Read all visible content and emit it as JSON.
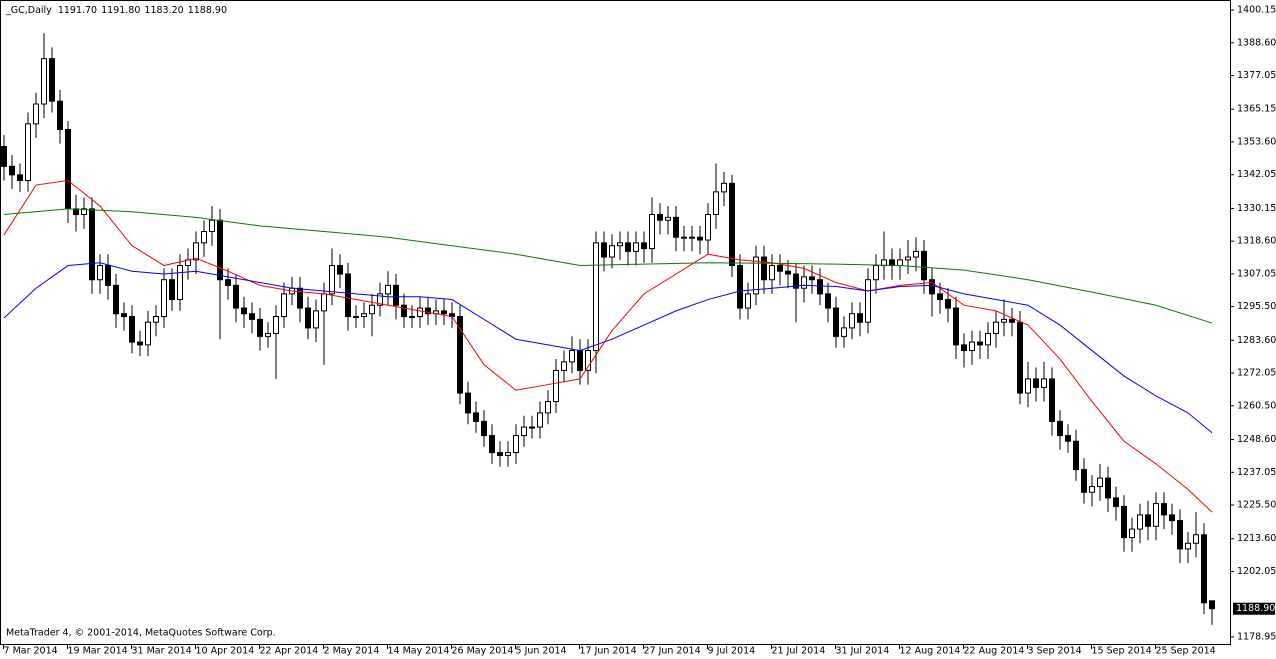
{
  "chart_data": {
    "type": "candlestick",
    "header_symbol": "_GC,Daily",
    "header_ohlc": [
      "1191.70",
      "1191.80",
      "1183.20",
      "1188.90"
    ],
    "footer": "MetaTrader 4, © 2001-2014, MetaQuotes Software Corp.",
    "last_price_label": "1188.90",
    "up_color": "#ffffff",
    "down_color": "#000000",
    "categories": [
      "7 Mar 2014",
      null,
      null,
      null,
      null,
      null,
      null,
      null,
      "19 Mar 2014",
      null,
      null,
      null,
      null,
      null,
      null,
      null,
      "31 Mar 2014",
      null,
      null,
      null,
      null,
      null,
      null,
      null,
      "10 Apr 2014",
      null,
      null,
      null,
      null,
      null,
      null,
      null,
      "22 Apr 2014",
      null,
      null,
      null,
      null,
      null,
      null,
      null,
      "2 May 2014",
      null,
      null,
      null,
      null,
      null,
      null,
      null,
      "14 May 2014",
      null,
      null,
      null,
      null,
      null,
      null,
      null,
      "26 May 2014",
      null,
      null,
      null,
      null,
      null,
      null,
      null,
      "5 Jun 2014",
      null,
      null,
      null,
      null,
      null,
      null,
      null,
      "17 Jun 2014",
      null,
      null,
      null,
      null,
      null,
      null,
      null,
      "27 Jun 2014",
      null,
      null,
      null,
      null,
      null,
      null,
      null,
      "9 Jul 2014",
      null,
      null,
      null,
      null,
      null,
      null,
      null,
      "21 Jul 2014",
      null,
      null,
      null,
      null,
      null,
      null,
      null,
      "31 Jul 2014",
      null,
      null,
      null,
      null,
      null,
      null,
      null,
      "12 Aug 2014",
      null,
      null,
      null,
      null,
      null,
      null,
      null,
      "22 Aug 2014",
      null,
      null,
      null,
      null,
      null,
      null,
      null,
      "3 Sep 2014",
      null,
      null,
      null,
      null,
      null,
      null,
      null,
      "15 Sep 2014",
      null,
      null,
      null,
      null,
      null,
      null,
      null,
      "25 Sep 2014",
      null,
      null,
      null,
      null,
      null,
      null,
      null
    ],
    "open": [
      1352,
      1345,
      1342,
      1340,
      1360,
      1367,
      1383,
      1368,
      1358,
      1330,
      1328,
      1330,
      1305,
      1310,
      1303,
      1293,
      1292,
      1283,
      1282,
      1290,
      1292,
      1305,
      1298,
      1310,
      1312,
      1318,
      1322,
      1326,
      1305,
      1303,
      1295,
      1293,
      1291,
      1285,
      1286,
      1292,
      1300,
      1302,
      1295,
      1288,
      1294,
      1300,
      1310,
      1307,
      1292,
      1292,
      1293,
      1296,
      1300,
      1303,
      1296,
      1292,
      1292,
      1295,
      1293,
      1294,
      1293,
      1292,
      1265,
      1258,
      1255,
      1250,
      1244,
      1243,
      1244,
      1250,
      1253,
      1253,
      1258,
      1262,
      1273,
      1276,
      1280,
      1273,
      1280,
      1318,
      1313,
      1317,
      1318,
      1315,
      1318,
      1316,
      1328,
      1326,
      1327,
      1320,
      1320,
      1320,
      1319,
      1328,
      1336,
      1339,
      1310,
      1295,
      1300,
      1313,
      1305,
      1310,
      1308,
      1307,
      1302,
      1306,
      1305,
      1300,
      1295,
      1285,
      1288,
      1293,
      1290,
      1305,
      1310,
      1312,
      1310,
      1312,
      1313,
      1315,
      1305,
      1300,
      1298,
      1295,
      1282,
      1280,
      1283,
      1282,
      1286,
      1290,
      1291,
      1290,
      1265,
      1270,
      1267,
      1270,
      1255,
      1250,
      1248,
      1238,
      1230,
      1232,
      1235,
      1228,
      1225,
      1214,
      1217,
      1222,
      1218,
      1226,
      1222,
      1220,
      1210,
      1212,
      1215,
      1191.7
    ],
    "high": [
      1356,
      1349,
      1346,
      1364,
      1371,
      1392,
      1387,
      1372,
      1361,
      1335,
      1334,
      1334,
      1314,
      1314,
      1307,
      1297,
      1296,
      1287,
      1294,
      1296,
      1309,
      1309,
      1314,
      1316,
      1322,
      1326,
      1331,
      1330,
      1309,
      1307,
      1299,
      1297,
      1295,
      1290,
      1296,
      1304,
      1306,
      1306,
      1299,
      1298,
      1304,
      1316,
      1314,
      1311,
      1296,
      1297,
      1300,
      1304,
      1308,
      1307,
      1300,
      1296,
      1299,
      1299,
      1298,
      1298,
      1297,
      1296,
      1269,
      1262,
      1259,
      1254,
      1248,
      1248,
      1254,
      1257,
      1257,
      1262,
      1266,
      1277,
      1280,
      1285,
      1284,
      1284,
      1322,
      1322,
      1321,
      1322,
      1322,
      1322,
      1322,
      1334,
      1332,
      1331,
      1331,
      1324,
      1324,
      1324,
      1332,
      1346,
      1343,
      1342,
      1314,
      1304,
      1317,
      1317,
      1314,
      1314,
      1312,
      1311,
      1310,
      1310,
      1309,
      1304,
      1299,
      1292,
      1297,
      1297,
      1309,
      1314,
      1322,
      1316,
      1316,
      1319,
      1320,
      1319,
      1309,
      1304,
      1302,
      1299,
      1286,
      1287,
      1287,
      1290,
      1294,
      1298,
      1295,
      1294,
      1276,
      1274,
      1276,
      1274,
      1259,
      1254,
      1252,
      1242,
      1236,
      1240,
      1239,
      1232,
      1229,
      1221,
      1226,
      1227,
      1230,
      1230,
      1226,
      1224,
      1216,
      1223,
      1219,
      1191.8
    ],
    "low": [
      1340,
      1337,
      1336,
      1336,
      1355,
      1362,
      1364,
      1353,
      1325,
      1322,
      1323,
      1300,
      1300,
      1298,
      1288,
      1287,
      1279,
      1278,
      1278,
      1285,
      1288,
      1294,
      1294,
      1305,
      1307,
      1313,
      1317,
      1284,
      1298,
      1290,
      1288,
      1286,
      1280,
      1281,
      1270,
      1288,
      1296,
      1290,
      1284,
      1283,
      1275,
      1296,
      1302,
      1287,
      1288,
      1288,
      1285,
      1292,
      1296,
      1291,
      1288,
      1288,
      1288,
      1289,
      1289,
      1289,
      1288,
      1261,
      1254,
      1251,
      1246,
      1240,
      1239,
      1239,
      1240,
      1246,
      1249,
      1249,
      1254,
      1258,
      1269,
      1272,
      1268,
      1268,
      1272,
      1308,
      1309,
      1312,
      1310,
      1310,
      1311,
      1311,
      1321,
      1321,
      1315,
      1315,
      1315,
      1314,
      1314,
      1323,
      1331,
      1306,
      1291,
      1291,
      1296,
      1300,
      1300,
      1303,
      1302,
      1290,
      1297,
      1300,
      1296,
      1290,
      1281,
      1281,
      1284,
      1285,
      1286,
      1300,
      1305,
      1305,
      1305,
      1307,
      1308,
      1300,
      1292,
      1293,
      1290,
      1277,
      1274,
      1275,
      1277,
      1277,
      1281,
      1285,
      1285,
      1261,
      1260,
      1262,
      1262,
      1250,
      1245,
      1244,
      1234,
      1226,
      1225,
      1227,
      1223,
      1220,
      1209,
      1209,
      1212,
      1213,
      1213,
      1217,
      1215,
      1205,
      1205,
      1207,
      1187,
      1183.2
    ],
    "close": [
      1345,
      1342,
      1340,
      1360,
      1367,
      1383,
      1368,
      1358,
      1330,
      1328,
      1330,
      1305,
      1310,
      1303,
      1293,
      1292,
      1283,
      1282,
      1290,
      1292,
      1305,
      1298,
      1310,
      1312,
      1318,
      1322,
      1326,
      1305,
      1303,
      1295,
      1293,
      1291,
      1285,
      1286,
      1292,
      1300,
      1302,
      1295,
      1288,
      1294,
      1300,
      1310,
      1307,
      1292,
      1292,
      1293,
      1296,
      1300,
      1303,
      1296,
      1292,
      1292,
      1295,
      1293,
      1294,
      1293,
      1292,
      1265,
      1258,
      1255,
      1250,
      1244,
      1243,
      1244,
      1250,
      1253,
      1253,
      1258,
      1262,
      1273,
      1276,
      1280,
      1273,
      1280,
      1318,
      1313,
      1317,
      1318,
      1315,
      1318,
      1316,
      1328,
      1326,
      1327,
      1320,
      1320,
      1320,
      1319,
      1328,
      1336,
      1339,
      1310,
      1295,
      1300,
      1313,
      1305,
      1310,
      1308,
      1307,
      1302,
      1306,
      1305,
      1300,
      1295,
      1285,
      1288,
      1293,
      1290,
      1305,
      1310,
      1312,
      1310,
      1312,
      1313,
      1315,
      1305,
      1300,
      1298,
      1295,
      1282,
      1280,
      1283,
      1282,
      1286,
      1290,
      1291,
      1290,
      1265,
      1270,
      1267,
      1270,
      1255,
      1250,
      1248,
      1238,
      1230,
      1232,
      1235,
      1228,
      1225,
      1214,
      1217,
      1222,
      1218,
      1226,
      1222,
      1220,
      1210,
      1212,
      1215,
      1191,
      1188.9
    ],
    "lines": [
      {
        "color": "#ff0000",
        "x": [
          0,
          4,
          8,
          12,
          16,
          20,
          24,
          28,
          32,
          36,
          40,
          44,
          48,
          52,
          56,
          60,
          64,
          68,
          72,
          76,
          80,
          84,
          88,
          92,
          96,
          100,
          104,
          108,
          112,
          116,
          120,
          124,
          128,
          132,
          136,
          140,
          144,
          148,
          151
        ],
        "values": [
          1320.8,
          1338.4,
          1340,
          1331,
          1317,
          1310,
          1312.6,
          1308,
          1303,
          1301,
          1300,
          1298,
          1296,
          1294,
          1292,
          1275,
          1266,
          1268,
          1270,
          1287,
          1300,
          1307,
          1314,
          1312,
          1311,
          1309,
          1304,
          1301,
          1303,
          1304,
          1296,
          1294,
          1289,
          1277,
          1262,
          1248,
          1240,
          1231,
          1223
        ]
      },
      {
        "color": "#0000ff",
        "x": [
          0,
          4,
          8,
          12,
          16,
          20,
          24,
          28,
          32,
          36,
          40,
          44,
          48,
          52,
          56,
          60,
          64,
          68,
          72,
          76,
          80,
          84,
          88,
          92,
          96,
          100,
          104,
          108,
          112,
          116,
          120,
          124,
          128,
          132,
          136,
          140,
          144,
          148,
          151
        ],
        "values": [
          1291.5,
          1302,
          1310,
          1311,
          1308,
          1307,
          1308,
          1306,
          1304,
          1302,
          1301,
          1300,
          1299,
          1299,
          1298,
          1291,
          1284,
          1282,
          1280,
          1284,
          1289,
          1294,
          1298,
          1301,
          1302,
          1303,
          1302.6,
          1301,
          1302.6,
          1303,
          1300,
          1298,
          1296,
          1289,
          1280,
          1271,
          1264,
          1258,
          1251
        ]
      },
      {
        "color": "#008000",
        "x": [
          0,
          8,
          16,
          24,
          32,
          40,
          48,
          56,
          64,
          72,
          80,
          88,
          96,
          104,
          112,
          120,
          128,
          136,
          144,
          151
        ],
        "values": [
          1328,
          1330,
          1329,
          1327,
          1324,
          1322,
          1320,
          1317,
          1314,
          1310,
          1310.5,
          1311,
          1310.8,
          1310.5,
          1310,
          1308.4,
          1305,
          1300.6,
          1296,
          1289.7
        ]
      }
    ],
    "ylim": [
      1176.1,
      1403.7
    ],
    "yticks": [
      1400.15,
      {
        "value": 1388.6,
        "label": "1388.60"
      },
      1377.05,
      1365.15,
      {
        "value": 1353.6,
        "label": "1353.60"
      },
      1342.05,
      1330.15,
      {
        "value": 1318.6,
        "label": "1318.60"
      },
      1307.05,
      {
        "value": 1295.5,
        "label": "1295.50"
      },
      {
        "value": 1283.6,
        "label": "1283.60"
      },
      1272.05,
      {
        "value": 1260.5,
        "label": "1260.50"
      },
      {
        "value": 1248.6,
        "label": "1248.60"
      },
      1237.05,
      {
        "value": 1225.5,
        "label": "1225.50"
      },
      {
        "value": 1213.6,
        "label": "1213.60"
      },
      1202.05,
      1178.95
    ]
  }
}
